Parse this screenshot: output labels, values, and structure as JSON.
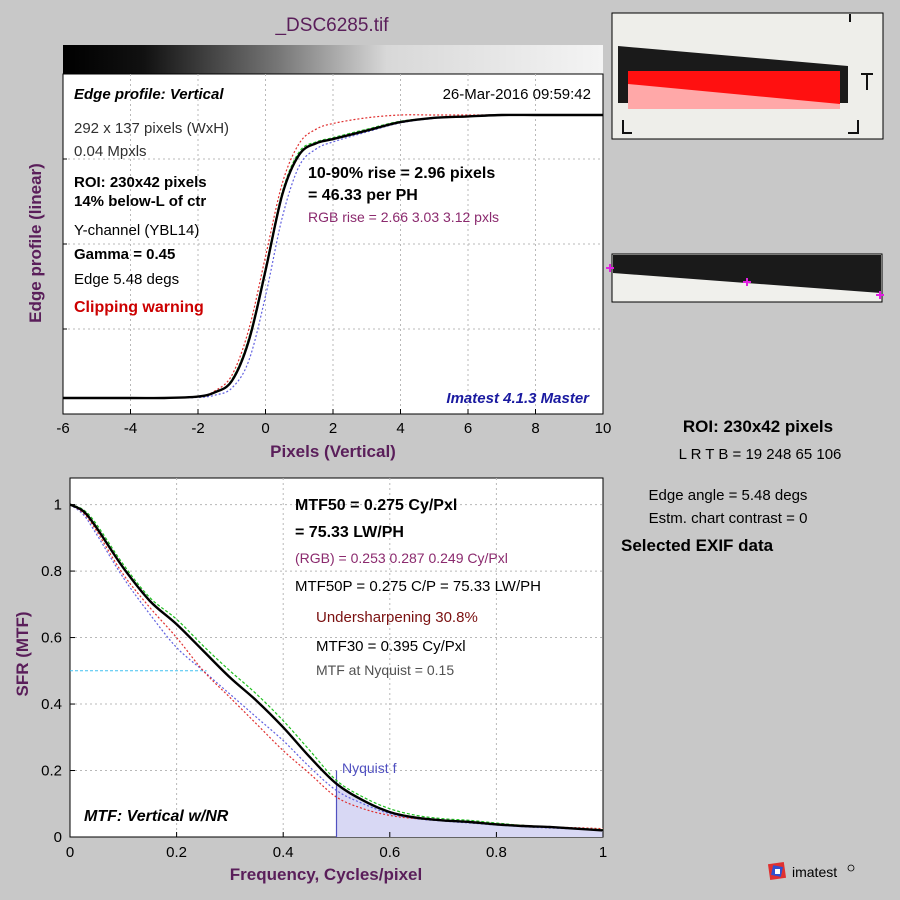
{
  "file_title": "_DSC6285.tif",
  "colors": {
    "background": "#c8c8c8",
    "axis_label": "#5a1e5a",
    "black_curve": "#000000",
    "red_curve": "#e03030",
    "green_curve": "#20c020",
    "blue_curve": "#6060e0",
    "warning": "#cc0000",
    "rgb_text": "#8b2a6e",
    "version_text": "#1a1aa0",
    "undersharpening": "#7a1010",
    "nyquist": "#5050c0",
    "mtf50_guide": "#40c0f0",
    "marker": "#e020e0"
  },
  "edge_panel": {
    "title": "Edge profile: Vertical",
    "timestamp": "26-Mar-2016 09:59:42",
    "size_info": "292 x 137 pixels (WxH)",
    "mpxls": "0.04 Mpxls",
    "roi_line1": "ROI:  230x42 pixels",
    "roi_line2": "14% below-L of ctr",
    "channel": "Y-channel  (YBL14)",
    "gamma": "Gamma = 0.45",
    "edge_angle": "Edge 5.48 degs",
    "clipping": "Clipping warning",
    "rise_line1": "10-90% rise = 2.96 pixels",
    "rise_line2": "= 46.33 per PH",
    "rgb_rise": "RGB rise = 2.66  3.03  3.12 pxls",
    "version": "Imatest 4.1.3 Master",
    "xlabel": "Pixels (Vertical)",
    "ylabel": "Edge profile (linear)"
  },
  "mtf_panel": {
    "label": "MTF: Vertical w/NR",
    "mtf50_line1": "MTF50 = 0.275 Cy/Pxl",
    "mtf50_line2": "= 75.33 LW/PH",
    "rgb_mtf50": "(RGB) = 0.253  0.287  0.249 Cy/Pxl",
    "mtf50p": "MTF50P = 0.275 C/P = 75.33 LW/PH",
    "undersharpening": "Undersharpening 30.8%",
    "mtf30": "MTF30 = 0.395 Cy/Pxl",
    "nyquist_mtf": "MTF at Nyquist = 0.15",
    "nyquist_label": "Nyquist f",
    "xlabel": "Frequency, Cycles/pixel",
    "ylabel": "SFR (MTF)"
  },
  "right_info": {
    "roi": "ROI:  230x42 pixels",
    "lrtb": "L R  T B = 19 248  65 106",
    "edge_angle": "Edge angle = 5.48 degs",
    "chart_contrast": "Estm. chart contrast = 0",
    "exif": "Selected EXIF data",
    "logo": "imatest"
  },
  "chart_data": [
    {
      "type": "line",
      "title": "Edge profile: Vertical",
      "xlabel": "Pixels (Vertical)",
      "ylabel": "Edge profile (linear)",
      "xlim": [
        -6,
        10
      ],
      "ylim": [
        0,
        1
      ],
      "xticks": [
        -6,
        -4,
        -2,
        0,
        2,
        4,
        6,
        8,
        10
      ],
      "grid": true,
      "series": [
        {
          "color": "black",
          "x": [
            -6,
            -4,
            -3,
            -2,
            -1.5,
            -1,
            -0.5,
            0,
            0.5,
            1,
            1.5,
            2,
            3,
            4,
            5,
            6,
            7,
            8,
            9,
            10
          ],
          "y": [
            0.0,
            0.0,
            0.0,
            0.005,
            0.02,
            0.06,
            0.2,
            0.45,
            0.72,
            0.86,
            0.9,
            0.915,
            0.945,
            0.975,
            0.99,
            0.995,
            1.0,
            1.0,
            1.0,
            1.0
          ]
        },
        {
          "color": "red",
          "x": [
            -6,
            -4,
            -3,
            -2,
            -1.5,
            -1,
            -0.5,
            0,
            0.5,
            1,
            1.5,
            2,
            3,
            4,
            5,
            6,
            7,
            8,
            9,
            10
          ],
          "y": [
            0.0,
            0.0,
            0.0,
            0.005,
            0.025,
            0.08,
            0.24,
            0.5,
            0.76,
            0.9,
            0.95,
            0.97,
            0.99,
            1.0,
            1.0,
            1.0,
            1.0,
            1.0,
            1.0,
            1.0
          ]
        },
        {
          "color": "green",
          "x": [
            -6,
            -4,
            -3,
            -2,
            -1.5,
            -1,
            -0.5,
            0,
            0.5,
            1,
            1.5,
            2,
            3,
            4,
            5,
            6,
            7,
            8,
            9,
            10
          ],
          "y": [
            0.0,
            0.0,
            0.0,
            0.005,
            0.02,
            0.065,
            0.21,
            0.46,
            0.73,
            0.87,
            0.905,
            0.92,
            0.95,
            0.978,
            0.99,
            0.996,
            1.0,
            1.0,
            1.0,
            1.0
          ]
        },
        {
          "color": "blue",
          "x": [
            -6,
            -4,
            -3,
            -2,
            -1.5,
            -1,
            -0.5,
            0,
            0.5,
            1,
            1.5,
            2,
            3,
            4,
            5,
            6,
            7,
            8,
            9,
            10
          ],
          "y": [
            0.0,
            0.0,
            0.0,
            0.002,
            0.01,
            0.035,
            0.13,
            0.36,
            0.64,
            0.82,
            0.88,
            0.905,
            0.94,
            0.972,
            0.988,
            0.995,
            1.0,
            1.0,
            1.0,
            1.0
          ]
        }
      ]
    },
    {
      "type": "line",
      "title": "MTF: Vertical w/NR",
      "xlabel": "Frequency, Cycles/pixel",
      "ylabel": "SFR (MTF)",
      "xlim": [
        0,
        1
      ],
      "ylim": [
        0,
        1.08
      ],
      "xticks": [
        0,
        0.2,
        0.4,
        0.6,
        0.8,
        1
      ],
      "yticks": [
        0,
        0.2,
        0.4,
        0.6,
        0.8,
        1
      ],
      "grid": true,
      "mtf50_level": 0.5,
      "mtf50_freq": 0.275,
      "nyquist": 0.5,
      "series": [
        {
          "color": "black",
          "x": [
            0,
            0.025,
            0.05,
            0.1,
            0.15,
            0.2,
            0.25,
            0.3,
            0.35,
            0.4,
            0.45,
            0.5,
            0.55,
            0.6,
            0.65,
            0.7,
            0.75,
            0.8,
            0.85,
            0.9,
            0.95,
            1.0
          ],
          "y": [
            1.0,
            0.98,
            0.93,
            0.81,
            0.71,
            0.64,
            0.56,
            0.48,
            0.41,
            0.33,
            0.24,
            0.16,
            0.11,
            0.075,
            0.058,
            0.05,
            0.045,
            0.038,
            0.033,
            0.03,
            0.025,
            0.02
          ]
        },
        {
          "color": "red",
          "x": [
            0,
            0.025,
            0.05,
            0.1,
            0.15,
            0.2,
            0.25,
            0.3,
            0.35,
            0.4,
            0.45,
            0.5,
            0.55,
            0.6,
            0.65,
            0.7,
            0.75,
            0.8,
            0.85,
            0.9,
            0.95,
            1.0
          ],
          "y": [
            1.0,
            0.975,
            0.92,
            0.79,
            0.69,
            0.6,
            0.5,
            0.42,
            0.34,
            0.26,
            0.19,
            0.12,
            0.085,
            0.065,
            0.055,
            0.05,
            0.045,
            0.04,
            0.035,
            0.03,
            0.028,
            0.025
          ]
        },
        {
          "color": "green",
          "x": [
            0,
            0.025,
            0.05,
            0.1,
            0.15,
            0.2,
            0.25,
            0.3,
            0.35,
            0.4,
            0.45,
            0.5,
            0.55,
            0.6,
            0.65,
            0.7,
            0.75,
            0.8,
            0.85,
            0.9,
            0.95,
            1.0
          ],
          "y": [
            1.0,
            0.985,
            0.94,
            0.82,
            0.72,
            0.655,
            0.575,
            0.5,
            0.43,
            0.35,
            0.26,
            0.17,
            0.12,
            0.085,
            0.065,
            0.055,
            0.05,
            0.042,
            0.035,
            0.03,
            0.026,
            0.022
          ]
        },
        {
          "color": "blue",
          "x": [
            0,
            0.025,
            0.05,
            0.1,
            0.15,
            0.2,
            0.25,
            0.3,
            0.35,
            0.4,
            0.45,
            0.5,
            0.55,
            0.6,
            0.65,
            0.7,
            0.75,
            0.8,
            0.85,
            0.9,
            0.95,
            1.0
          ],
          "y": [
            1.0,
            0.97,
            0.91,
            0.78,
            0.67,
            0.57,
            0.5,
            0.43,
            0.36,
            0.29,
            0.21,
            0.14,
            0.1,
            0.07,
            0.055,
            0.048,
            0.042,
            0.036,
            0.031,
            0.027,
            0.024,
            0.02
          ]
        }
      ]
    }
  ]
}
